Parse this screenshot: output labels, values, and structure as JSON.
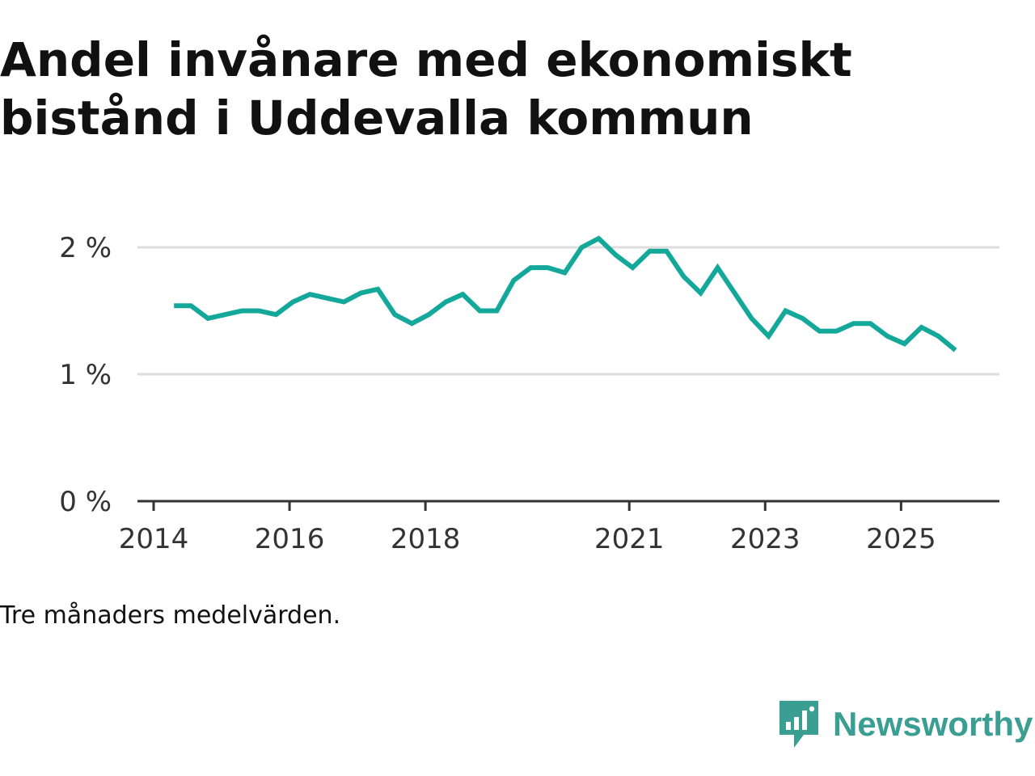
{
  "title": "Andel invånare med ekonomiskt bistånd i Uddevalla kommun",
  "note": "Tre månaders medelvärden.",
  "brand": {
    "name": "Newsworthy",
    "icon": "newsworthy-logo-icon",
    "color": "#3a9e92"
  },
  "chart_data": {
    "type": "line",
    "title": "Andel invånare med ekonomiskt bistånd i Uddevalla kommun",
    "xlabel": "",
    "ylabel": "",
    "ylim": [
      0,
      2
    ],
    "xlim": [
      2014,
      2026.4
    ],
    "grid": true,
    "yticks": [
      {
        "value": 0,
        "label": "0 %"
      },
      {
        "value": 1,
        "label": "1 %"
      },
      {
        "value": 2,
        "label": "2 %"
      }
    ],
    "xticks": [
      {
        "value": 2014,
        "label": "2014"
      },
      {
        "value": 2016,
        "label": "2016"
      },
      {
        "value": 2018,
        "label": "2018"
      },
      {
        "value": 2021,
        "label": "2021"
      },
      {
        "value": 2023,
        "label": "2023"
      },
      {
        "value": 2025,
        "label": "2025"
      }
    ],
    "series": [
      {
        "name": "Andel invånare med ekonomiskt bistånd",
        "color": "#14a89a",
        "x": [
          2014.3,
          2014.55,
          2014.8,
          2015.05,
          2015.3,
          2015.55,
          2015.8,
          2016.05,
          2016.3,
          2016.55,
          2016.8,
          2017.05,
          2017.3,
          2017.55,
          2017.8,
          2018.05,
          2018.3,
          2018.55,
          2018.8,
          2019.05,
          2019.3,
          2019.55,
          2019.8,
          2020.05,
          2020.3,
          2020.55,
          2020.8,
          2021.05,
          2021.3,
          2021.55,
          2021.8,
          2022.05,
          2022.3,
          2022.55,
          2022.8,
          2023.05,
          2023.3,
          2023.55,
          2023.8,
          2024.05,
          2024.3,
          2024.55,
          2024.8,
          2025.05,
          2025.3,
          2025.55,
          2025.8
        ],
        "values": [
          1.54,
          1.54,
          1.44,
          1.47,
          1.5,
          1.5,
          1.47,
          1.57,
          1.63,
          1.6,
          1.57,
          1.64,
          1.67,
          1.47,
          1.4,
          1.47,
          1.57,
          1.63,
          1.5,
          1.5,
          1.74,
          1.84,
          1.84,
          1.8,
          2.0,
          2.07,
          1.94,
          1.84,
          1.97,
          1.97,
          1.77,
          1.64,
          1.84,
          1.64,
          1.44,
          1.3,
          1.5,
          1.44,
          1.34,
          1.34,
          1.4,
          1.4,
          1.3,
          1.24,
          1.37,
          1.3,
          1.19
        ]
      }
    ]
  }
}
